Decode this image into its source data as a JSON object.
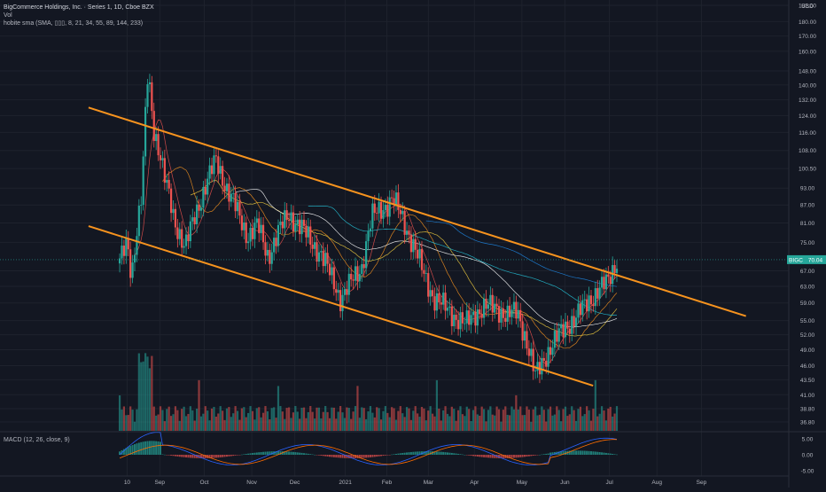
{
  "header": {
    "symbol_line": "BigCommerce Holdings, Inc. · Series 1, 1D, Cboe BZX",
    "vol_line": "Vol",
    "ma_line": "hobite sma (SMA, ▯▯▯, 8, 21, 34, 55, 89, 144, 233)",
    "macd_line": "MACD (12, 26, close, 9)",
    "currency": "USD"
  },
  "price_tag": {
    "symbol": "BIGC",
    "value": "70.04"
  },
  "colors": {
    "up": "#26a69a",
    "down": "#ef5350",
    "channel": "#f7931e",
    "ma8": "#ef5350",
    "ma21": "#f7931e",
    "ma34": "#f4d03f",
    "ma55": "#ffffff",
    "ma89": "#26c6da",
    "ma144": "#1e88e5",
    "ma233": "#9c27b0",
    "macd_line": "#2962ff",
    "signal_line": "#ff6d00"
  },
  "chart_data": {
    "type": "candlestick",
    "scale": "log",
    "y_ticks": [
      "192.00",
      "180.00",
      "170.00",
      "160.00",
      "148.00",
      "140.00",
      "132.00",
      "124.00",
      "116.00",
      "108.00",
      "100.50",
      "93.00",
      "87.00",
      "81.00",
      "75.00",
      "70.04",
      "67.00",
      "63.00",
      "59.00",
      "55.00",
      "52.00",
      "49.00",
      "46.00",
      "43.50",
      "41.00",
      "38.80",
      "36.80"
    ],
    "x_ticks": [
      "10",
      "Sep",
      "Oct",
      "Nov",
      "Dec",
      "2021",
      "Feb",
      "Mar",
      "Apr",
      "May",
      "Jun",
      "Jul",
      "Aug",
      "Sep"
    ],
    "macd_ticks": [
      "5.00",
      "0.00",
      "-5.00"
    ],
    "ylim": [
      36.8,
      192
    ],
    "last_price": 70.04,
    "approx_path": [
      [
        "2020-08-05",
        69
      ],
      [
        "2020-08-10",
        76
      ],
      [
        "2020-08-13",
        66
      ],
      [
        "2020-08-20",
        90
      ],
      [
        "2020-08-24",
        148
      ],
      [
        "2020-08-28",
        118
      ],
      [
        "2020-09-04",
        97
      ],
      [
        "2020-09-11",
        82
      ],
      [
        "2020-09-18",
        73
      ],
      [
        "2020-09-25",
        84
      ],
      [
        "2020-10-02",
        94
      ],
      [
        "2020-10-09",
        104
      ],
      [
        "2020-10-16",
        93
      ],
      [
        "2020-10-23",
        85
      ],
      [
        "2020-10-30",
        77
      ],
      [
        "2020-11-06",
        80
      ],
      [
        "2020-11-13",
        71
      ],
      [
        "2020-11-20",
        78
      ],
      [
        "2020-11-27",
        84
      ],
      [
        "2020-12-04",
        80
      ],
      [
        "2020-12-11",
        76
      ],
      [
        "2020-12-18",
        72
      ],
      [
        "2020-12-25",
        66
      ],
      [
        "2021-01-01",
        60
      ],
      [
        "2021-01-08",
        64
      ],
      [
        "2021-01-15",
        68
      ],
      [
        "2021-01-22",
        83
      ],
      [
        "2021-01-29",
        86
      ],
      [
        "2021-02-05",
        89
      ],
      [
        "2021-02-12",
        82
      ],
      [
        "2021-02-19",
        74
      ],
      [
        "2021-02-26",
        66
      ],
      [
        "2021-03-05",
        60
      ],
      [
        "2021-03-12",
        58
      ],
      [
        "2021-03-19",
        56
      ],
      [
        "2021-03-26",
        54
      ],
      [
        "2021-04-02",
        57
      ],
      [
        "2021-04-09",
        58
      ],
      [
        "2021-04-16",
        58
      ],
      [
        "2021-04-23",
        56
      ],
      [
        "2021-04-30",
        57
      ],
      [
        "2021-05-05",
        52
      ],
      [
        "2021-05-12",
        44
      ],
      [
        "2021-05-19",
        48
      ],
      [
        "2021-05-26",
        51
      ],
      [
        "2021-06-02",
        54
      ],
      [
        "2021-06-09",
        56
      ],
      [
        "2021-06-16",
        59
      ],
      [
        "2021-06-23",
        62
      ],
      [
        "2021-06-30",
        64
      ],
      [
        "2021-07-02",
        66
      ],
      [
        "2021-07-06",
        70.04
      ]
    ],
    "channel_upper": [
      [
        "2020-07-15",
        128
      ],
      [
        "2021-10-01",
        56
      ]
    ],
    "channel_lower": [
      [
        "2020-07-15",
        80
      ],
      [
        "2021-06-20",
        42.5
      ]
    ]
  }
}
